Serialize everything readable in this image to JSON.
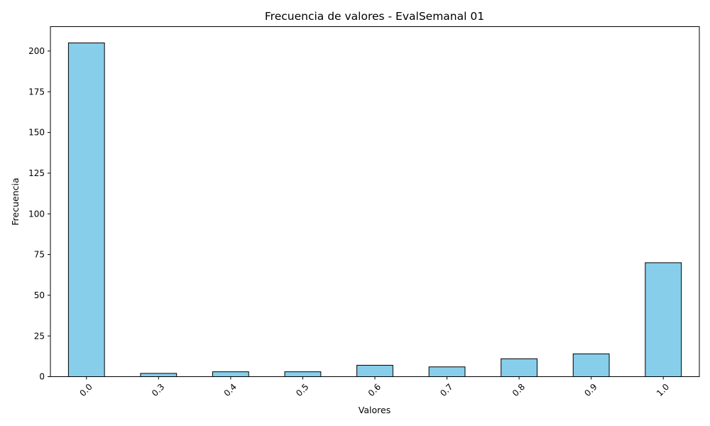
{
  "chart_data": {
    "type": "bar",
    "title": "Frecuencia de valores - EvalSemanal 01",
    "xlabel": "Valores",
    "ylabel": "Frecuencia",
    "categories": [
      "0.0",
      "0.3",
      "0.4",
      "0.5",
      "0.6",
      "0.7",
      "0.8",
      "0.9",
      "1.0"
    ],
    "values": [
      205,
      2,
      3,
      3,
      7,
      6,
      11,
      14,
      70
    ],
    "yticks": [
      0,
      25,
      50,
      75,
      100,
      125,
      150,
      175,
      200
    ],
    "ylim": [
      0,
      215
    ],
    "grid": false,
    "x_tick_rotation_deg": 45,
    "bar_color": "#87CEEB",
    "bar_edge_color": "#000000"
  }
}
